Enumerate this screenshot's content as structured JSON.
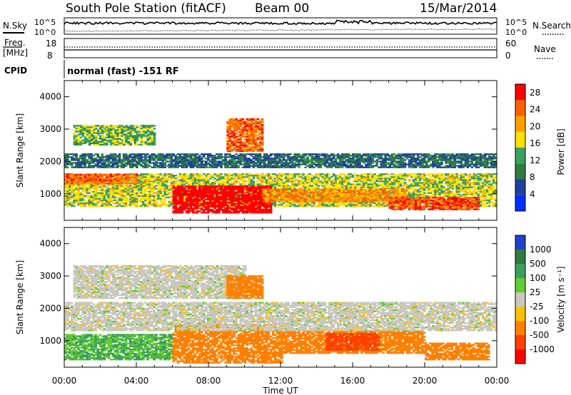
{
  "header": {
    "title": "South Pole Station (fitACF)",
    "beam": "Beam 00",
    "date": "15/Mar/2014"
  },
  "strip": {
    "nsky_label": "N.Sky",
    "nsearch_label": "N.Search",
    "noise_ticks": [
      "10^5",
      "10^0"
    ],
    "freq_label": "Freq.",
    "freq_unit": "[MHz]",
    "freq_ticks": [
      "18",
      "8"
    ],
    "nave_label": "Nave",
    "nave_ticks": [
      "60",
      "0"
    ],
    "cpid_label": "CPID",
    "cpid_text": "normal (fast) -151 RF"
  },
  "colors": {
    "power": [
      "#0030ff",
      "#2040a0",
      "#2e7d3e",
      "#3aa060",
      "#ffe000",
      "#ffa000",
      "#ff6000",
      "#ff0000"
    ],
    "velocity": [
      "#2040d0",
      "#2e7d3e",
      "#3aa060",
      "#66cc33",
      "#c8c8c0",
      "#ffc000",
      "#ff8000",
      "#ff4000",
      "#ff0000"
    ]
  },
  "chart_data": [
    {
      "type": "heatmap",
      "name": "power",
      "xlabel": "",
      "ylabel": "Slant Range [km]",
      "x_ticks": [
        "00:00",
        "04:00",
        "08:00",
        "12:00",
        "16:00",
        "20:00",
        "00:00"
      ],
      "x_range_hours": [
        0,
        24
      ],
      "y_range": [
        180,
        4500
      ],
      "y_ticks": [
        1000,
        2000,
        3000,
        4000
      ],
      "colorbar": {
        "label": "Power [dB]",
        "ticks": [
          4,
          8,
          12,
          16,
          20,
          24,
          28
        ],
        "range": [
          0,
          30
        ]
      },
      "regions": [
        {
          "t0": 0.0,
          "t1": 24.0,
          "r0": 600,
          "r1": 1600,
          "level": 16
        },
        {
          "t0": 6.0,
          "t1": 11.5,
          "r0": 400,
          "r1": 1250,
          "level": 30
        },
        {
          "t0": 11.0,
          "t1": 19.0,
          "r0": 750,
          "r1": 1150,
          "level": 22
        },
        {
          "t0": 18.0,
          "t1": 23.0,
          "r0": 500,
          "r1": 900,
          "level": 26
        },
        {
          "t0": 0.0,
          "t1": 4.0,
          "r0": 1300,
          "r1": 1600,
          "level": 24
        },
        {
          "t0": 0.0,
          "t1": 24.0,
          "r0": 1800,
          "r1": 2250,
          "level": 8
        },
        {
          "t0": 0.5,
          "t1": 5.0,
          "r0": 2500,
          "r1": 3100,
          "level": 14
        },
        {
          "t0": 9.0,
          "t1": 11.0,
          "r0": 2300,
          "r1": 3300,
          "level": 24
        }
      ]
    },
    {
      "type": "heatmap",
      "name": "velocity",
      "xlabel": "Time UT",
      "ylabel": "Slant Range [km]",
      "x_ticks": [
        "00:00",
        "04:00",
        "08:00",
        "12:00",
        "16:00",
        "20:00",
        "00:00"
      ],
      "x_range_hours": [
        0,
        24
      ],
      "y_range": [
        180,
        4500
      ],
      "y_ticks": [
        1000,
        2000,
        3000,
        4000
      ],
      "colorbar": {
        "label": "Velocity [m s⁻¹]",
        "ticks": [
          1000,
          500,
          100,
          25,
          -25,
          -100,
          -500,
          -1000
        ]
      },
      "regions": [
        {
          "t0": 0.0,
          "t1": 6.0,
          "r0": 400,
          "r1": 1200,
          "level": 100
        },
        {
          "t0": 6.0,
          "t1": 12.0,
          "r0": 300,
          "r1": 1500,
          "level": -300
        },
        {
          "t0": 12.0,
          "t1": 20.0,
          "r0": 600,
          "r1": 1300,
          "level": -200
        },
        {
          "t0": 14.5,
          "t1": 17.5,
          "r0": 700,
          "r1": 1200,
          "level": -700
        },
        {
          "t0": 20.0,
          "t1": 23.5,
          "r0": 400,
          "r1": 900,
          "level": -400
        },
        {
          "t0": 0.0,
          "t1": 24.0,
          "r0": 1300,
          "r1": 2200,
          "level": 0
        },
        {
          "t0": 0.5,
          "t1": 10.0,
          "r0": 2300,
          "r1": 3300,
          "level": 0
        },
        {
          "t0": 9.0,
          "t1": 11.0,
          "r0": 2300,
          "r1": 3000,
          "level": -200
        }
      ]
    }
  ]
}
